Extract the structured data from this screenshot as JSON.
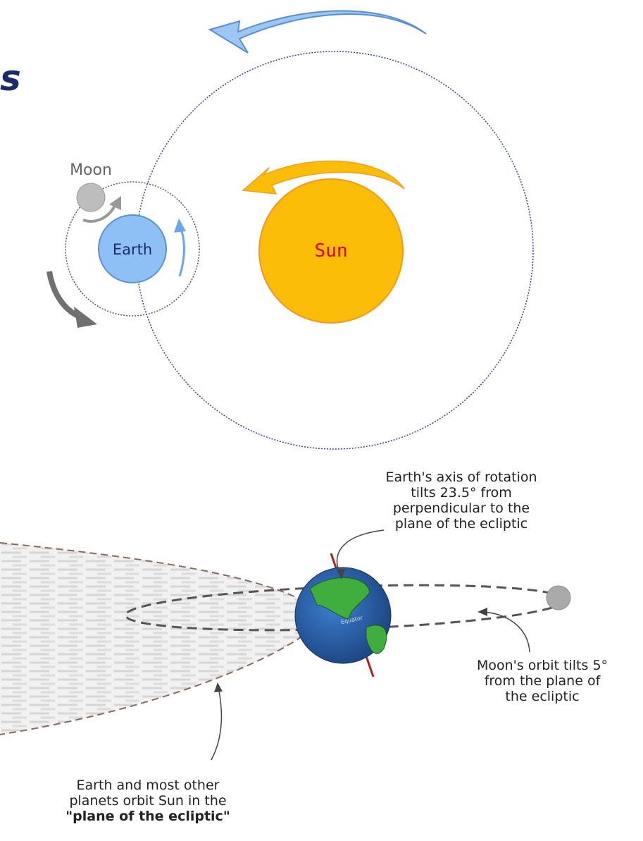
{
  "header": {
    "title": "s"
  },
  "orbit_diagram": {
    "moon": "Moon",
    "earth": "Earth",
    "sun": "Sun"
  },
  "ecliptic_diagram": {
    "axis_note": [
      "Earth's axis of rotation",
      "tilts 23.5° from",
      "perpendicular to the",
      "plane of the ecliptic"
    ],
    "moon_orbit_note": [
      "Moon's orbit tilts 5°",
      "from the plane of",
      "the ecliptic"
    ],
    "ecliptic_note": {
      "lines": [
        "Earth and most other",
        "planets orbit Sun in the"
      ],
      "emphasis": "\"plane of the ecliptic\""
    },
    "equator": "Equator"
  }
}
